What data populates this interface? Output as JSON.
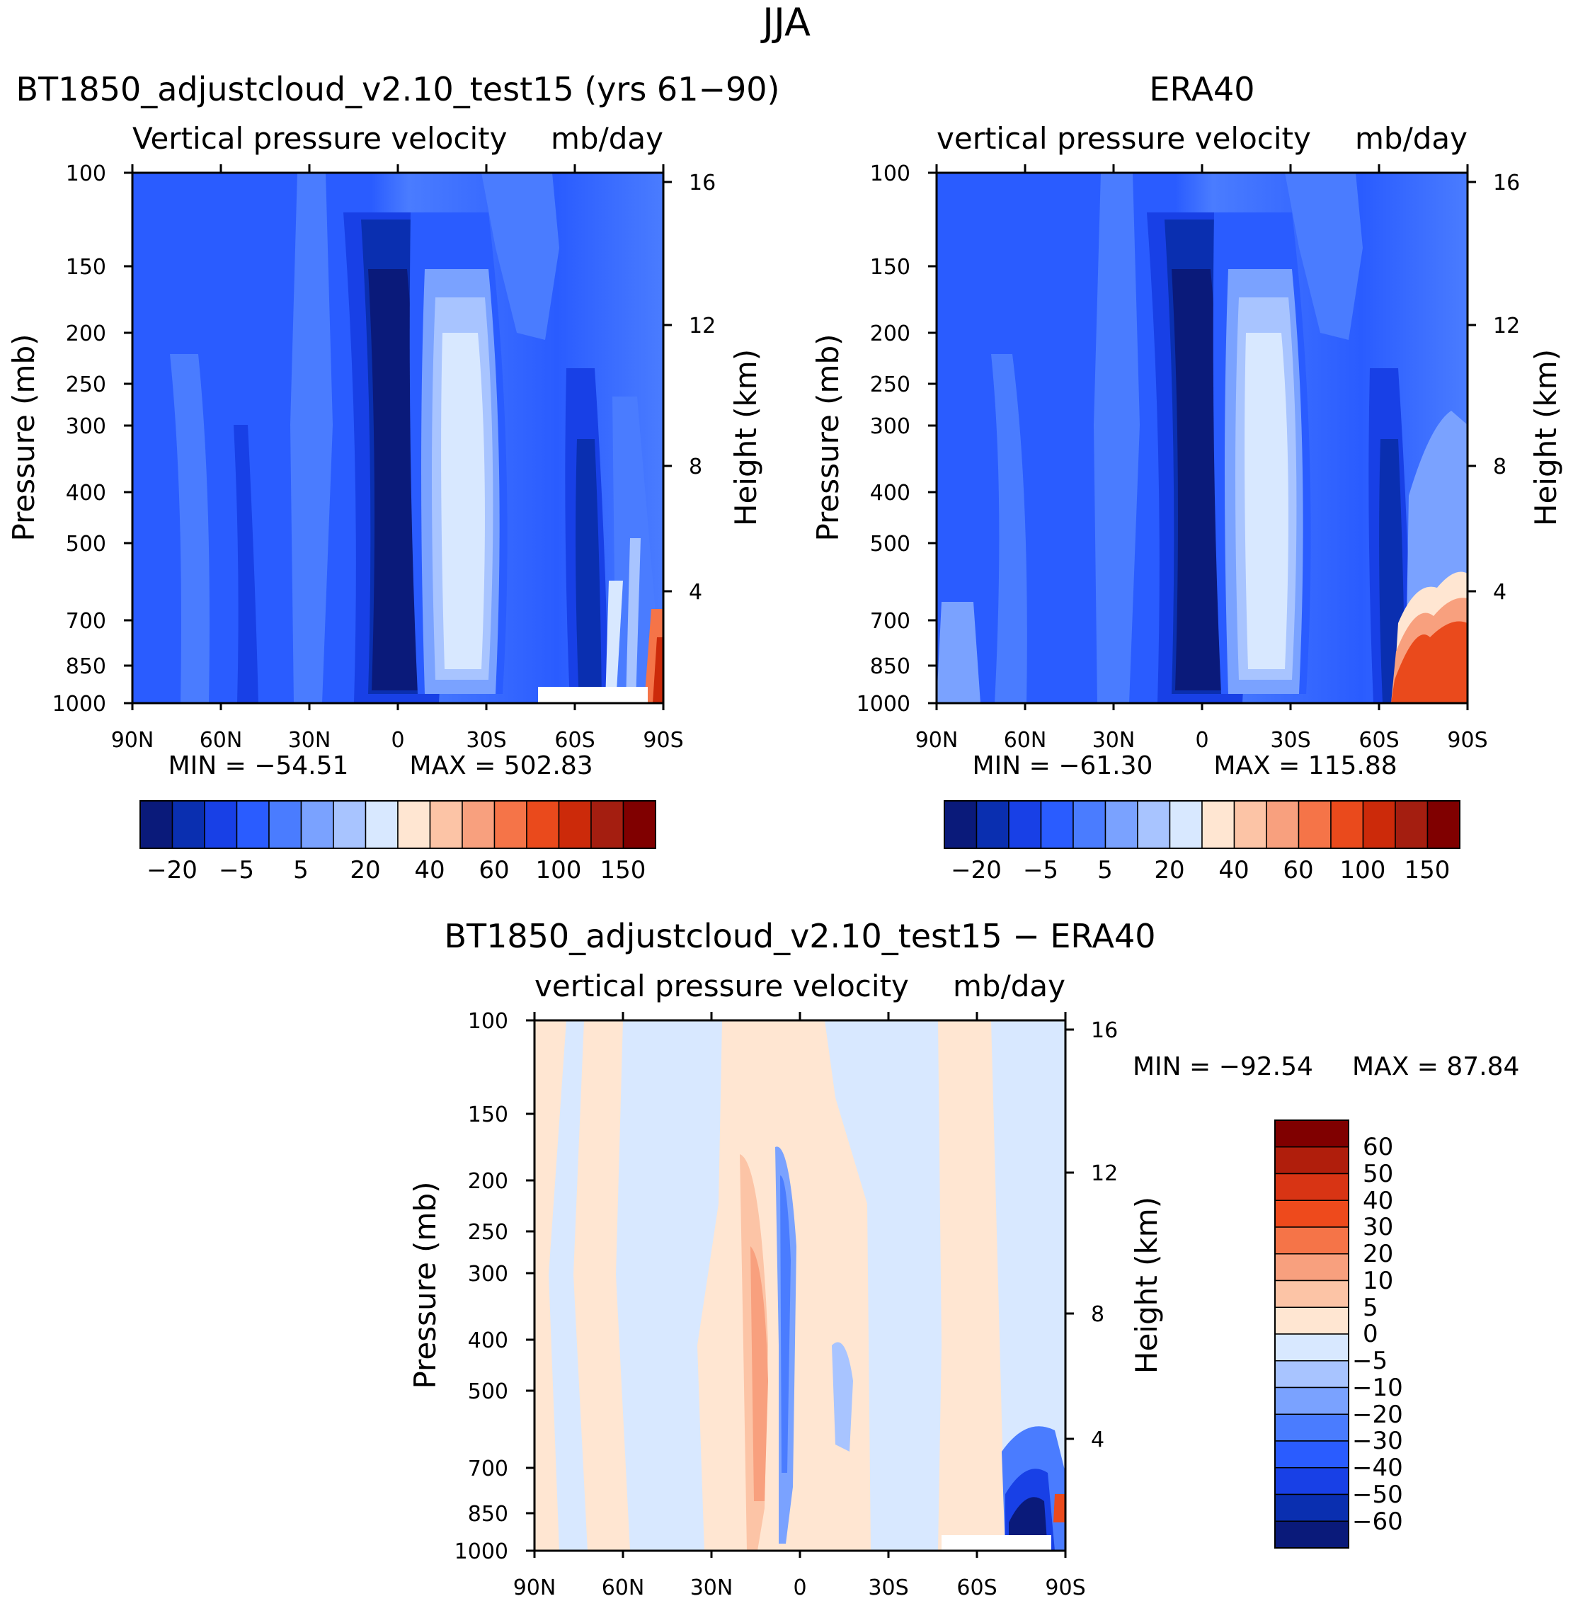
{
  "figure": {
    "title": "JJA"
  },
  "chart_data": [
    {
      "type": "heatmap",
      "title": "BT1850_adjustcloud_v2.10_test15 (yrs 61-90)",
      "subtitle_left": "Vertical pressure velocity",
      "subtitle_right": "mb/day",
      "ylabel": "Pressure (mb)",
      "y2label": "Height (km)",
      "x_ticks": [
        "90N",
        "60N",
        "30N",
        "0",
        "30S",
        "60S",
        "90S"
      ],
      "y_ticks": [
        "100",
        "150",
        "200",
        "250",
        "300",
        "400",
        "500",
        "700",
        "850",
        "1000"
      ],
      "y2_ticks": [
        "16",
        "12",
        "8",
        "4"
      ],
      "min_label": "MIN = -54.51",
      "max_label": "MAX = 502.83",
      "min": -54.51,
      "max": 502.83,
      "colorbar_labels": [
        "-20",
        "-5",
        "5",
        "20",
        "40",
        "60",
        "100",
        "150"
      ],
      "colors": [
        "#0a1a7a",
        "#0a2fb0",
        "#1840e6",
        "#2a5cff",
        "#4a7cff",
        "#7aa2ff",
        "#a8c4ff",
        "#d8e8ff",
        "#ffe6d2",
        "#fcc4a6",
        "#f8a07e",
        "#f57448",
        "#ea4a1c",
        "#cc2a0a",
        "#a41e10",
        "#800000"
      ]
    },
    {
      "type": "heatmap",
      "title": "ERA40",
      "subtitle_left": "vertical pressure velocity",
      "subtitle_right": "mb/day",
      "ylabel": "Pressure (mb)",
      "y2label": "Height (km)",
      "x_ticks": [
        "90N",
        "60N",
        "30N",
        "0",
        "30S",
        "60S",
        "90S"
      ],
      "y_ticks": [
        "100",
        "150",
        "200",
        "250",
        "300",
        "400",
        "500",
        "700",
        "850",
        "1000"
      ],
      "y2_ticks": [
        "16",
        "12",
        "8",
        "4"
      ],
      "min_label": "MIN = -61.30",
      "max_label": "MAX = 115.88",
      "min": -61.3,
      "max": 115.88,
      "colorbar_labels": [
        "-20",
        "-5",
        "5",
        "20",
        "40",
        "60",
        "100",
        "150"
      ],
      "colors": [
        "#0a1a7a",
        "#0a2fb0",
        "#1840e6",
        "#2a5cff",
        "#4a7cff",
        "#7aa2ff",
        "#a8c4ff",
        "#d8e8ff",
        "#ffe6d2",
        "#fcc4a6",
        "#f8a07e",
        "#f57448",
        "#ea4a1c",
        "#cc2a0a",
        "#a41e10",
        "#800000"
      ]
    },
    {
      "type": "heatmap",
      "title": "BT1850_adjustcloud_v2.10_test15 - ERA40",
      "subtitle_left": "vertical pressure velocity",
      "subtitle_right": "mb/day",
      "ylabel": "Pressure (mb)",
      "y2label": "Height (km)",
      "x_ticks": [
        "90N",
        "60N",
        "30N",
        "0",
        "30S",
        "60S",
        "90S"
      ],
      "y_ticks": [
        "100",
        "150",
        "200",
        "250",
        "300",
        "400",
        "500",
        "700",
        "850",
        "1000"
      ],
      "y2_ticks": [
        "16",
        "12",
        "8",
        "4"
      ],
      "min_label": "MIN = -92.54",
      "max_label": "MAX = 87.84",
      "min": -92.54,
      "max": 87.84,
      "colorbar_labels": [
        "60",
        "50",
        "40",
        "30",
        "20",
        "10",
        "5",
        "0",
        "-5",
        "-10",
        "-20",
        "-30",
        "-40",
        "-50",
        "-60"
      ],
      "colors": [
        "#800000",
        "#b01e0c",
        "#d83414",
        "#ee4a1c",
        "#f57448",
        "#f8a07e",
        "#fcc4a6",
        "#ffe6d2",
        "#d8e8ff",
        "#a8c4ff",
        "#7aa2ff",
        "#4a7cff",
        "#2a5cff",
        "#1840e6",
        "#0a2fb0",
        "#0a1a7a"
      ]
    }
  ]
}
